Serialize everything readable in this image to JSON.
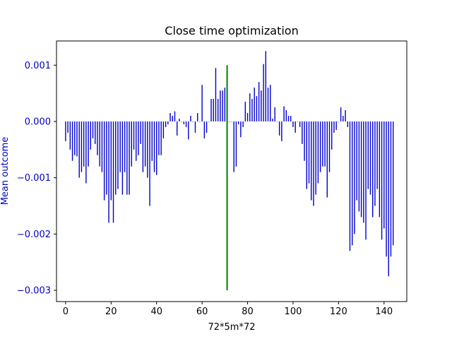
{
  "chart_data": {
    "type": "bar",
    "title": "Close time optimization",
    "xlabel": "72*5m*72",
    "ylabel": "Mean outcome",
    "xlim": [
      -4,
      150
    ],
    "ylim": [
      -0.0032,
      0.00143
    ],
    "x_ticks": [
      0,
      20,
      40,
      60,
      80,
      100,
      120,
      140
    ],
    "x_tick_labels": [
      "0",
      "20",
      "40",
      "60",
      "80",
      "100",
      "120",
      "140"
    ],
    "y_ticks": [
      0.001,
      0.0,
      -0.001,
      -0.002,
      -0.003
    ],
    "y_tick_labels": [
      "0.001",
      "0.000",
      "−0.001",
      "−0.002",
      "−0.003"
    ],
    "grid": false,
    "colors": {
      "bars": "#0000cc",
      "marker": "#008000",
      "ylabel": "#0000cc",
      "yticks": "#0000cc"
    },
    "series": [
      {
        "values": [
          -0.00035,
          -0.0002,
          -0.0005,
          -0.0007,
          -0.0006,
          -0.00062,
          -0.001,
          -0.0009,
          -0.0008,
          -0.0011,
          -0.0008,
          -0.0005,
          -0.0003,
          -0.0004,
          -0.0006,
          -0.0008,
          -0.0009,
          -0.0014,
          -0.0013,
          -0.0018,
          -0.0014,
          -0.0018,
          -0.0013,
          -0.0012,
          -0.0009,
          -0.0013,
          -0.0009,
          -0.0013,
          -0.0013,
          -0.0008,
          -0.0005,
          -0.0007,
          -0.0006,
          -0.0004,
          -0.0009,
          -0.0008,
          -0.001,
          -0.0015,
          -0.0007,
          -0.0009,
          -0.00095,
          -0.0006,
          -0.0006,
          -0.0003,
          -0.0001,
          -5e-05,
          0.00015,
          0.0001,
          0.00018,
          -0.00025,
          5e-05,
          0.0,
          -5e-05,
          -0.0001,
          -0.00032,
          0.0001,
          0.0,
          -0.0002,
          0.00015,
          0.0,
          0.00065,
          -0.0003,
          -0.0002,
          0.0,
          0.0004,
          0.0004,
          0.00095,
          0.0004,
          0.00055,
          0.00055,
          0.0006,
          0.0004,
          0.0,
          0.0,
          -0.0009,
          -0.0008,
          -5e-05,
          -0.00028,
          -0.0001,
          0.00035,
          0.00015,
          0.0005,
          0.0004,
          0.0006,
          0.00045,
          0.0007,
          0.00055,
          0.00102,
          0.00125,
          0.0006,
          0.00065,
          5e-05,
          0.00025,
          0.0,
          -0.00025,
          -0.00035,
          0.00027,
          0.0002,
          0.0001,
          0.0001,
          -0.0001,
          -0.0002,
          0.0,
          -0.0001,
          -0.0004,
          -0.0007,
          -0.0012,
          -0.0011,
          -0.0014,
          -0.0015,
          -0.0013,
          -0.0011,
          -0.0009,
          -0.0008,
          -0.0008,
          -0.00135,
          -0.0009,
          -0.0005,
          -0.0002,
          -0.00015,
          0.0,
          0.00025,
          0.0001,
          0.0002,
          -0.0001,
          -0.0023,
          -0.0022,
          -0.002,
          -0.0014,
          -0.0016,
          -0.0017,
          -0.0018,
          -0.0021,
          -0.0012,
          -0.0013,
          -0.0017,
          -0.0015,
          -0.0012,
          -0.0017,
          -0.0021,
          -0.0019,
          -0.0024,
          -0.00275,
          -0.0024,
          -0.0022
        ]
      }
    ],
    "marker_line": {
      "x": 71,
      "y_start": -0.003,
      "y_end": 0.001
    }
  }
}
